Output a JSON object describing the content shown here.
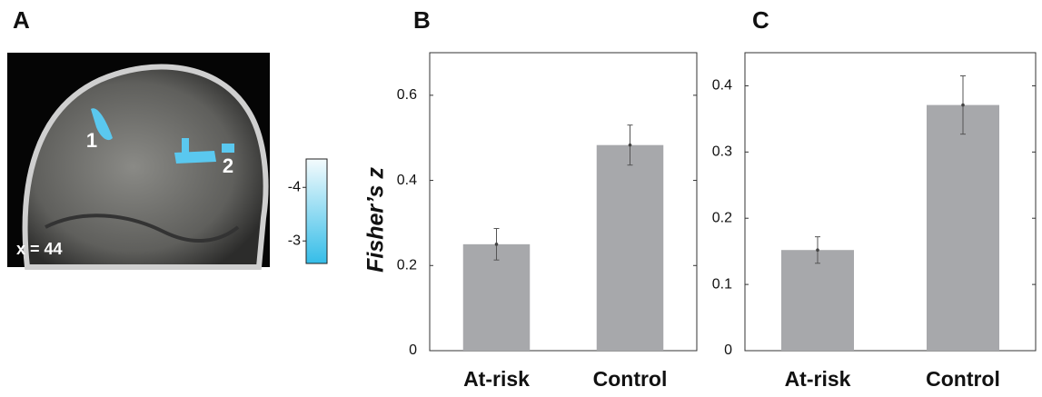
{
  "brain_panel": {
    "label": "A",
    "region_labels": [
      "1",
      "2"
    ],
    "slice_label": "x = 44",
    "colorbar": {
      "lim": [
        -2.58,
        -4.53
      ],
      "ticks": [
        -4,
        -3
      ]
    }
  },
  "chart_data": [
    {
      "type": "bar",
      "label": "B",
      "ylabel": "Fisher’s z",
      "categories": [
        "At-risk",
        "Control"
      ],
      "values": [
        0.25,
        0.483
      ],
      "errors": [
        0.037,
        0.047
      ],
      "color": "#a7a8ab",
      "ylim": [
        0,
        0.7
      ],
      "yticks": [
        0,
        0.2,
        0.4,
        0.6
      ]
    },
    {
      "type": "bar",
      "label": "C",
      "categories": [
        "At-risk",
        "Control"
      ],
      "values": [
        0.152,
        0.371
      ],
      "errors": [
        0.02,
        0.044
      ],
      "color": "#a7a8ab",
      "ylim": [
        0,
        0.45
      ],
      "yticks": [
        0,
        0.1,
        0.2,
        0.3,
        0.4
      ]
    }
  ]
}
